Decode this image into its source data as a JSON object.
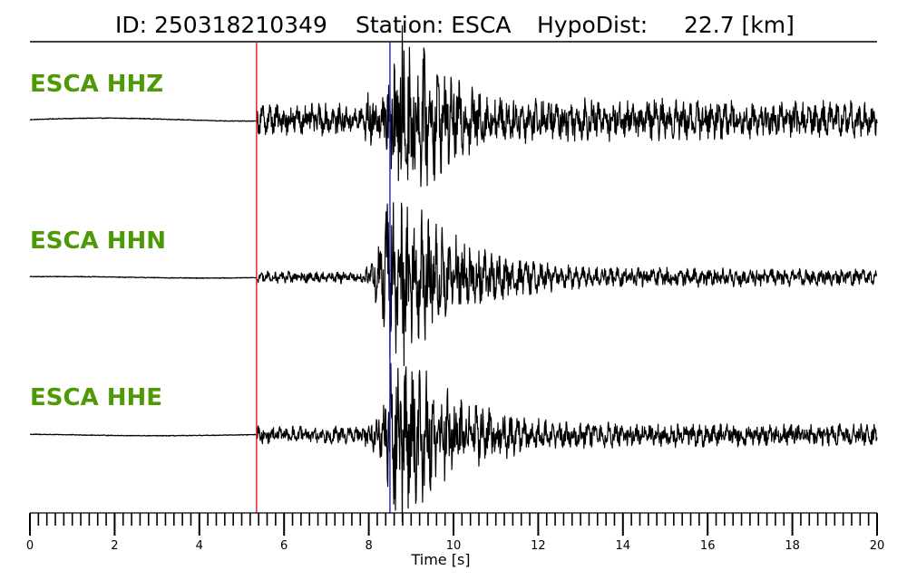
{
  "title": {
    "id_text": "ID: 250318210349",
    "station_text": "Station: ESCA",
    "dist_text": "HypoDist:     22.7 [km]"
  },
  "label_color": "#4e9a06",
  "trace_color": "#000000",
  "chart_data": {
    "type": "line",
    "xlabel": "Time [s]",
    "xlim": [
      0,
      20
    ],
    "x_major_ticks": [
      0,
      2,
      4,
      6,
      8,
      10,
      12,
      14,
      16,
      18,
      20
    ],
    "x_minor_step": 0.2,
    "picks": [
      {
        "phase": "P",
        "time": 5.35,
        "color": "#e41a1c"
      },
      {
        "phase": "S",
        "time": 8.5,
        "color": "#1f1fbf"
      }
    ],
    "series": [
      {
        "name": "ESCA HHZ",
        "pre_noise": 0.02,
        "post_noise": 0.18,
        "peak": 1.0,
        "peak_time": 8.75,
        "decay": 1.4,
        "coda": 0.12
      },
      {
        "name": "ESCA HHN",
        "pre_noise": 0.01,
        "post_noise": 0.07,
        "peak": 1.0,
        "peak_time": 8.6,
        "decay": 1.6,
        "coda": 0.1
      },
      {
        "name": "ESCA HHE",
        "pre_noise": 0.01,
        "post_noise": 0.1,
        "peak": 0.95,
        "peak_time": 8.7,
        "decay": 1.6,
        "coda": 0.09
      }
    ]
  }
}
